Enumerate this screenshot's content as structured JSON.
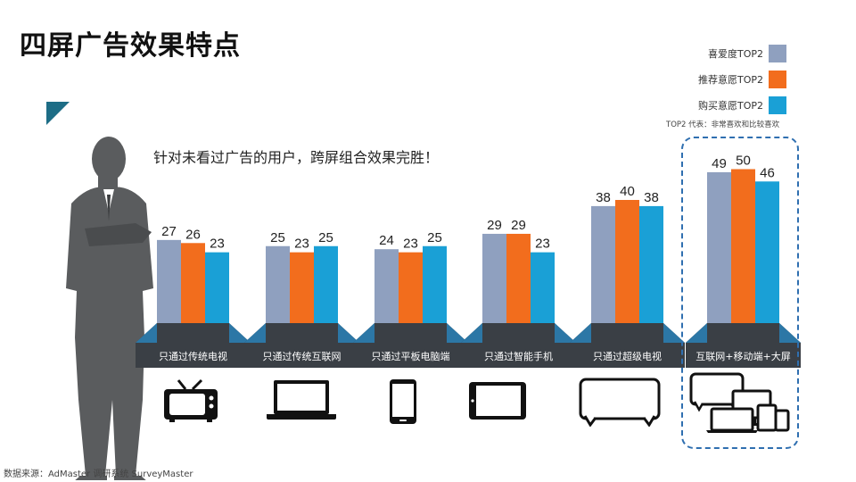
{
  "slide": {
    "title": "四屏广告效果特点",
    "headline": "针对未看过广告的用户，跨屏组合效果完胜！",
    "legend_note": "TOP2 代表：非常喜欢和比较喜欢",
    "source": "数据来源：AdMaster 调研系统 SurveyMaster"
  },
  "colors": {
    "series": [
      "#8fa0bf",
      "#f26d1d",
      "#1aa0d6"
    ],
    "base": "#3a3f45",
    "silhouette": "#5a5c5e",
    "highlight": "#2f6fb0",
    "corner": "#1d6d86"
  },
  "icons": [
    "tv-icon",
    "laptop-icon",
    "phone-icon",
    "tablet-icon",
    "smart-tv-icon",
    "multi-screen-icon"
  ],
  "chart_data": {
    "type": "bar",
    "categories": [
      "只通过传统电视",
      "只通过传统互联网",
      "只通过平板电脑端",
      "只通过智能手机",
      "只通过超级电视",
      "互联网+移动端+大屏"
    ],
    "series": [
      {
        "name": "喜爱度TOP2",
        "values": [
          27,
          25,
          24,
          29,
          38,
          49
        ]
      },
      {
        "name": "推荐意愿TOP2",
        "values": [
          26,
          23,
          23,
          29,
          40,
          50
        ]
      },
      {
        "name": "购买意愿TOP2",
        "values": [
          23,
          25,
          25,
          23,
          38,
          46
        ]
      }
    ],
    "ylim": [
      0,
      55
    ],
    "grid": false,
    "legend_position": "top-right"
  }
}
